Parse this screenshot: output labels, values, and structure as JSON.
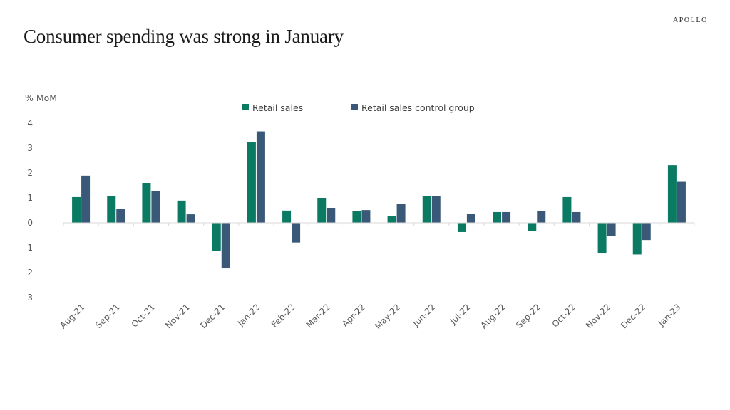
{
  "header": {
    "title": "Consumer spending was strong in January",
    "brand": "APOLLO"
  },
  "colors": {
    "retail_sales": "#0b7a63",
    "control_group": "#3a5878",
    "axis": "#d9d9d9",
    "text": "#595959"
  },
  "chart_data": {
    "type": "bar",
    "title": "Consumer spending was strong in January",
    "xlabel": "",
    "ylabel": "% MoM",
    "ylim": [
      -3,
      4
    ],
    "yticks": [
      4,
      3,
      2,
      1,
      0,
      -1,
      -2,
      -3
    ],
    "grid": false,
    "legend_position": "top-center",
    "categories": [
      "Aug-21",
      "Sep-21",
      "Oct-21",
      "Nov-21",
      "Dec-21",
      "Jan-22",
      "Feb-22",
      "Mar-22",
      "Apr-22",
      "May-22",
      "Jun-22",
      "Jul-22",
      "Aug-22",
      "Sep-22",
      "Oct-22",
      "Nov-22",
      "Dec-22",
      "Jan-23"
    ],
    "series": [
      {
        "name": "Retail sales",
        "color": "#0b7a63",
        "values": [
          1.03,
          1.06,
          1.6,
          0.89,
          -1.13,
          3.23,
          0.49,
          1.0,
          0.46,
          0.26,
          1.06,
          -0.37,
          0.43,
          -0.34,
          1.03,
          -1.23,
          -1.27,
          2.31
        ]
      },
      {
        "name": "Retail sales control group",
        "color": "#3a5878",
        "values": [
          1.89,
          0.57,
          1.26,
          0.34,
          -1.83,
          3.67,
          -0.79,
          0.6,
          0.51,
          0.77,
          1.06,
          0.37,
          0.43,
          0.46,
          0.43,
          -0.54,
          -0.69,
          1.67
        ]
      }
    ]
  }
}
